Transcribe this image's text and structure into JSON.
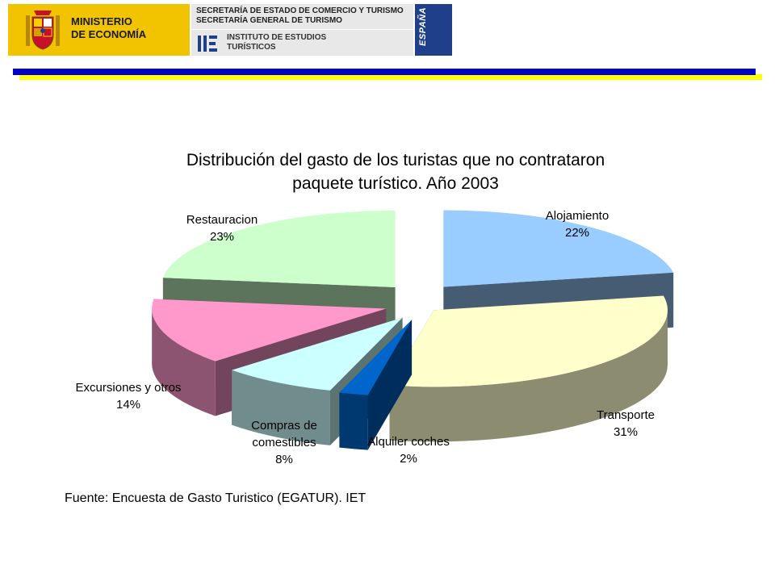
{
  "header": {
    "ministerio": "MINISTERIO\nDE ECONOMÍA",
    "secretaria_line1": "SECRETARÍA DE ESTADO DE COMERCIO Y TURISMO",
    "secretaria_line2": "SECRETARÍA GENERAL DE TURISMO",
    "instituto": "INSTITUTO DE ESTUDIOS\nTURÍSTICOS",
    "espana": "ESPAÑA",
    "colors": {
      "ministerio_bg": "#f2c400",
      "espana_bg": "#1f3f8a",
      "bar_blue": "#0000cc",
      "bar_yellow": "#ffff00"
    }
  },
  "chart_data": {
    "type": "pie",
    "title": "Distribución del gasto de los turistas que no contrataron paquete turístico. Año 2003",
    "title_line1": "Distribución del gasto de los turistas que no contrataron",
    "title_line2": "paquete turístico. Año 2003",
    "style": "3d-exploded",
    "slices": [
      {
        "name": "Alojamiento",
        "value": 22,
        "label": "22%",
        "color": "#99ccff"
      },
      {
        "name": "Transporte",
        "value": 31,
        "label": "31%",
        "color": "#ffffcc"
      },
      {
        "name": "Alquiler coches",
        "value": 2,
        "label": "2%",
        "color": "#0066cc"
      },
      {
        "name": "Compras de comestibles",
        "name_line1": "Compras de",
        "name_line2": "comestibles",
        "value": 8,
        "label": "8%",
        "color": "#ccffff"
      },
      {
        "name": "Excursiones y otros",
        "value": 14,
        "label": "14%",
        "color": "#ff99cc"
      },
      {
        "name": "Restauracion",
        "value": 23,
        "label": "23%",
        "color": "#ccffcc"
      }
    ]
  },
  "source": "Fuente: Encuesta de Gasto Turistico (EGATUR). IET"
}
